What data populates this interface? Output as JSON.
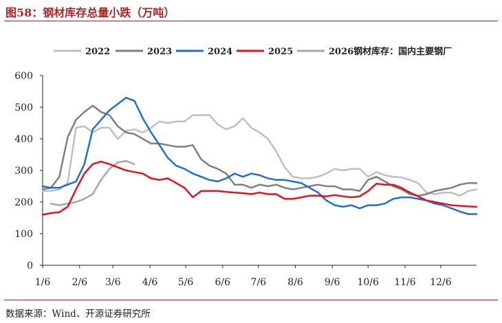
{
  "figure": {
    "title": "图58：钢材库存总量小跌（万吨）",
    "source": "数据来源：Wind、开源证券研究所"
  },
  "chart_data": {
    "type": "line",
    "title": "图58：钢材库存总量小跌（万吨）",
    "xlabel": "",
    "ylabel": "",
    "ylim": [
      0,
      600
    ],
    "yticks": [
      0,
      100,
      200,
      300,
      400,
      500,
      600
    ],
    "xlim": [
      0,
      52
    ],
    "xticks": [
      {
        "label": "1/6",
        "week": 0
      },
      {
        "label": "2/6",
        "week": 4.43
      },
      {
        "label": "3/6",
        "week": 8.43
      },
      {
        "label": "4/6",
        "week": 12.86
      },
      {
        "label": "5/6",
        "week": 17.14
      },
      {
        "label": "6/6",
        "week": 21.57
      },
      {
        "label": "7/6",
        "week": 25.86
      },
      {
        "label": "8/6",
        "week": 30.29
      },
      {
        "label": "9/6",
        "week": 34.71
      },
      {
        "label": "10/6",
        "week": 39.0
      },
      {
        "label": "11/6",
        "week": 43.43
      },
      {
        "label": "12/6",
        "week": 47.71
      }
    ],
    "grid": false,
    "legend_position": "top",
    "series": [
      {
        "name": "2022",
        "color": "#bfbfbf",
        "values": [
          235,
          235,
          240,
          260,
          435,
          440,
          420,
          435,
          435,
          400,
          425,
          430,
          420,
          435,
          455,
          450,
          455,
          455,
          475,
          475,
          475,
          445,
          430,
          440,
          465,
          435,
          420,
          400,
          360,
          310,
          280,
          275,
          275,
          280,
          290,
          305,
          300,
          305,
          305,
          280,
          295,
          285,
          280,
          278,
          270,
          260,
          230,
          225,
          230,
          230,
          220,
          235,
          240
        ]
      },
      {
        "name": "2023",
        "color": "#7f7f7f",
        "values": [
          240,
          245,
          280,
          405,
          460,
          485,
          505,
          485,
          475,
          440,
          420,
          415,
          400,
          385,
          385,
          380,
          375,
          375,
          380,
          335,
          315,
          305,
          290,
          255,
          255,
          245,
          255,
          250,
          255,
          245,
          240,
          245,
          250,
          255,
          250,
          250,
          240,
          240,
          235,
          270,
          280,
          265,
          250,
          240,
          225,
          220,
          225,
          235,
          240,
          245,
          255,
          260,
          260
        ]
      },
      {
        "name": "2024",
        "color": "#1f6fd1",
        "values": [
          250,
          245,
          245,
          255,
          265,
          320,
          430,
          460,
          490,
          510,
          530,
          520,
          465,
          420,
          380,
          340,
          315,
          305,
          290,
          280,
          270,
          265,
          275,
          290,
          280,
          290,
          285,
          275,
          270,
          270,
          265,
          260,
          245,
          230,
          205,
          190,
          185,
          190,
          180,
          190,
          190,
          195,
          210,
          215,
          215,
          210,
          205,
          195,
          190,
          180,
          170,
          162,
          162
        ]
      },
      {
        "name": "2025",
        "color": "#e8111b",
        "values": [
          160,
          165,
          168,
          185,
          240,
          290,
          320,
          328,
          320,
          310,
          300,
          295,
          290,
          275,
          270,
          275,
          260,
          245,
          215,
          235,
          235,
          235,
          232,
          230,
          228,
          225,
          230,
          225,
          225,
          210,
          210,
          215,
          220,
          220,
          218,
          222,
          218,
          215,
          218,
          235,
          258,
          255,
          255,
          245,
          230,
          218,
          205,
          200,
          195,
          190,
          188,
          186,
          185
        ]
      },
      {
        "name": "2026钢材库存：国内主要钢厂",
        "color": "#a6a6a6",
        "values": [
          null,
          195,
          190,
          195,
          200,
          210,
          225,
          270,
          305,
          325,
          330,
          320
        ]
      }
    ]
  }
}
